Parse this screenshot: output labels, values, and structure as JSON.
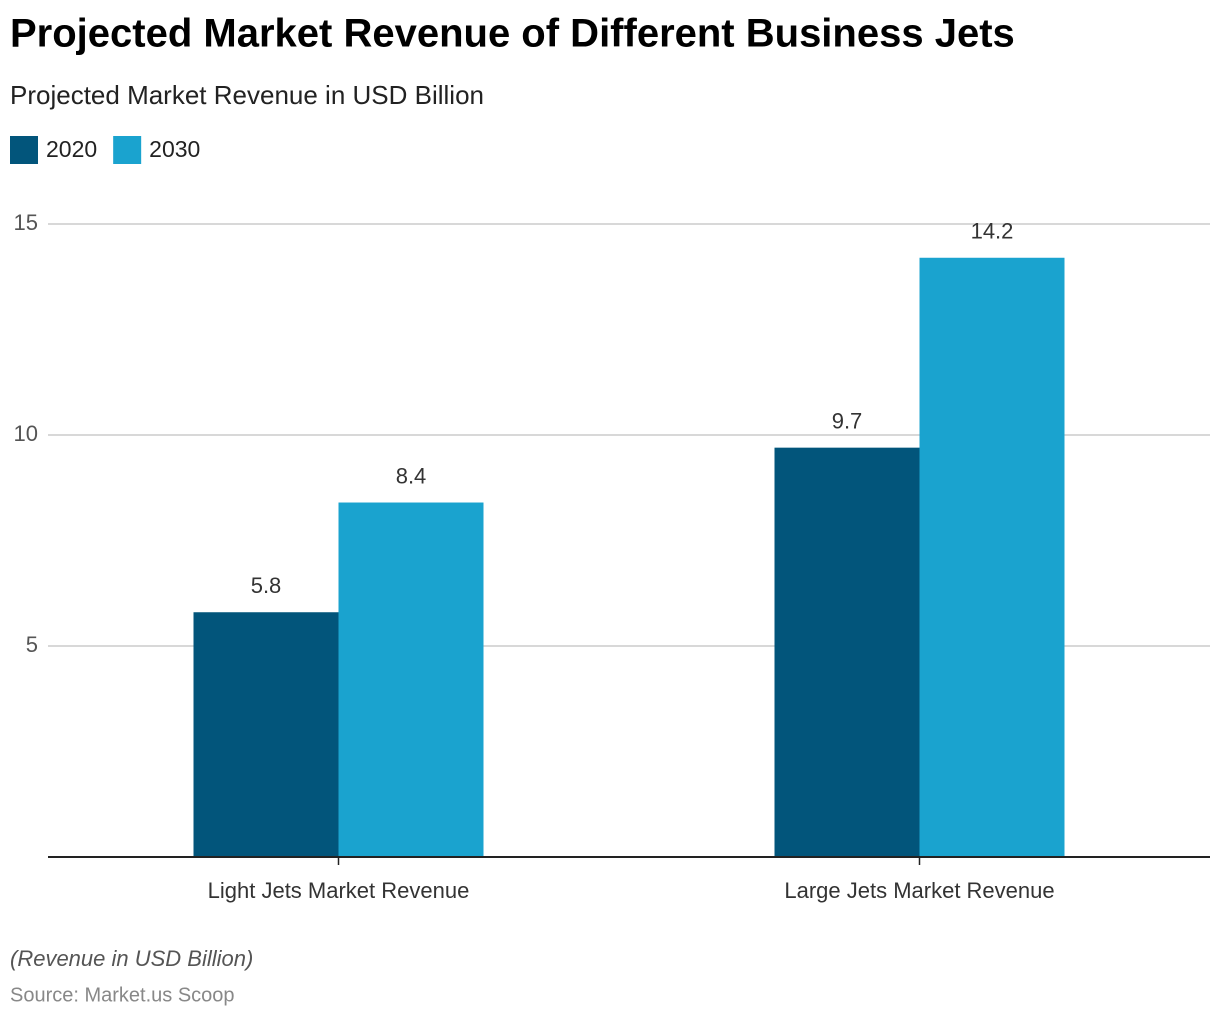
{
  "chart_data": {
    "type": "grouped_bar",
    "title": "Projected Market Revenue of Different Business Jets",
    "subtitle": "Projected Market Revenue in USD Billion",
    "categories": [
      "Light Jets Market Revenue",
      "Large Jets Market Revenue"
    ],
    "series": [
      {
        "name": "2020",
        "color": "#02557b",
        "values": [
          5.8,
          9.7
        ]
      },
      {
        "name": "2030",
        "color": "#1aa3cf",
        "values": [
          8.4,
          14.2
        ]
      }
    ],
    "ylim": [
      0,
      15
    ],
    "yticks": [
      5,
      10,
      15
    ],
    "grid": true,
    "legend": "top-left",
    "note": "(Revenue in USD Billion)",
    "source": "Source: Market.us Scoop"
  }
}
